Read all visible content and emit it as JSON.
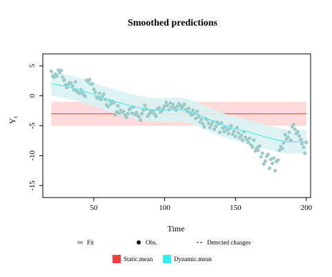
{
  "chart_data": {
    "type": "line",
    "title": "Smoothed predictions",
    "xlabel": "Time",
    "ylabel": "Y",
    "ylabel_sub": "t",
    "xlim": [
      14,
      203
    ],
    "ylim": [
      -17,
      7
    ],
    "xticks": [
      50,
      100,
      150,
      200
    ],
    "yticks": [
      5,
      0,
      -5,
      -10,
      -15
    ],
    "grid": false,
    "legend_rows": [
      [
        {
          "label": "Fit",
          "symbol": "fit"
        },
        {
          "label": "Obs.",
          "symbol": "dot"
        },
        {
          "label": "Detected changes",
          "symbol": "dash"
        }
      ],
      [
        {
          "label": "Static.mean",
          "symbol": "box",
          "color": "#ff3b3b"
        },
        {
          "label": "Dynamic.mean",
          "symbol": "box",
          "color": "#33f0f0"
        }
      ]
    ],
    "colors": {
      "static_line": "#ff5a5a",
      "static_band": "#ffdada",
      "dynamic_line": "#5fe8e8",
      "dynamic_band": "#d9f2f2",
      "obs": "#9ec9c9"
    },
    "static_mean": {
      "x_range": [
        20,
        200
      ],
      "mean": -3.0,
      "lower": -5.0,
      "upper": -1.0
    },
    "dynamic_mean": {
      "x": [
        20,
        30,
        40,
        50,
        60,
        70,
        80,
        90,
        100,
        110,
        120,
        130,
        140,
        150,
        160,
        170,
        180,
        190,
        200
      ],
      "mean": [
        2.0,
        1.6,
        1.0,
        0.2,
        -0.6,
        -1.3,
        -1.9,
        -2.3,
        -2.4,
        -2.3,
        -2.8,
        -3.8,
        -4.8,
        -5.5,
        -6.1,
        -6.8,
        -7.4,
        -7.7,
        -7.6
      ],
      "lower": [
        0.0,
        -0.4,
        -1.0,
        -1.8,
        -2.6,
        -3.3,
        -3.9,
        -4.3,
        -4.4,
        -4.3,
        -4.8,
        -5.8,
        -6.8,
        -7.5,
        -8.1,
        -8.8,
        -9.4,
        -9.7,
        -9.6
      ],
      "upper": [
        4.0,
        3.6,
        3.0,
        2.2,
        1.4,
        0.7,
        0.1,
        -0.3,
        -0.4,
        -0.3,
        -0.8,
        -1.8,
        -2.8,
        -3.5,
        -4.1,
        -4.8,
        -5.4,
        -5.7,
        -5.6
      ]
    },
    "observations": {
      "x": [
        20,
        21,
        22,
        23,
        24,
        25,
        26,
        27,
        28,
        29,
        30,
        31,
        32,
        33,
        34,
        35,
        36,
        37,
        38,
        39,
        40,
        41,
        42,
        43,
        44,
        45,
        46,
        47,
        48,
        49,
        50,
        51,
        52,
        53,
        54,
        55,
        56,
        57,
        58,
        59,
        60,
        61,
        62,
        63,
        64,
        65,
        66,
        67,
        68,
        69,
        70,
        71,
        72,
        73,
        74,
        75,
        76,
        77,
        78,
        79,
        80,
        81,
        82,
        83,
        84,
        85,
        86,
        87,
        88,
        89,
        90,
        91,
        92,
        93,
        94,
        95,
        96,
        97,
        98,
        99,
        100,
        101,
        102,
        103,
        104,
        105,
        106,
        107,
        108,
        109,
        110,
        111,
        112,
        113,
        114,
        115,
        116,
        117,
        118,
        119,
        120,
        121,
        122,
        123,
        124,
        125,
        126,
        127,
        128,
        129,
        130,
        131,
        132,
        133,
        134,
        135,
        136,
        137,
        138,
        139,
        140,
        141,
        142,
        143,
        144,
        145,
        146,
        147,
        148,
        149,
        150,
        151,
        152,
        153,
        154,
        155,
        156,
        157,
        158,
        159,
        160,
        161,
        162,
        163,
        164,
        165,
        166,
        167,
        168,
        169,
        170,
        171,
        172,
        173,
        174,
        175,
        176,
        177,
        178,
        179,
        180,
        181,
        182,
        183,
        184,
        185,
        186,
        187,
        188,
        189,
        190,
        191,
        192,
        193,
        194,
        195,
        196,
        197,
        198,
        199,
        200
      ],
      "y": [
        4.1,
        3.3,
        3.1,
        3.6,
        3.3,
        4.3,
        3.9,
        4.2,
        3.1,
        2.6,
        1.8,
        1.4,
        1.9,
        2.2,
        2.1,
        1.6,
        1.0,
        2.3,
        0.8,
        0.5,
        0.4,
        1.0,
        0.5,
        0.1,
        -0.1,
        2.6,
        2.3,
        2.7,
        1.9,
        2.0,
        1.1,
        0.6,
        -0.3,
        -0.4,
        0.4,
        -0.6,
        -0.1,
        0.3,
        -0.6,
        -1.5,
        -1.8,
        -0.8,
        -1.4,
        -0.9,
        -1.2,
        -3.2,
        -2.7,
        -1.7,
        -2.9,
        -2.4,
        -2.7,
        -2.6,
        -3.2,
        -3.6,
        -3.0,
        -2.3,
        -2.1,
        -2.9,
        -1.9,
        -3.1,
        -2.8,
        -3.3,
        -3.5,
        -4.1,
        -3.0,
        -2.4,
        -1.6,
        -2.2,
        -3.4,
        -3.1,
        -2.6,
        -2.8,
        -2.5,
        -3.1,
        -3.4,
        -2.2,
        -2.0,
        -2.7,
        -2.5,
        -2.1,
        -1.7,
        -1.1,
        -1.6,
        -2.3,
        -1.2,
        -1.9,
        -1.4,
        -2.0,
        -2.4,
        -1.8,
        -1.3,
        -1.6,
        -2.0,
        -1.7,
        -1.4,
        -2.3,
        -2.6,
        -2.1,
        -2.9,
        -3.2,
        -2.4,
        -3.0,
        -3.8,
        -2.6,
        -3.5,
        -4.4,
        -3.9,
        -4.7,
        -5.2,
        -3.8,
        -4.0,
        -4.6,
        -5.3,
        -4.8,
        -4.3,
        -5.6,
        -5.1,
        -4.4,
        -4.7,
        -6.1,
        -4.5,
        -5.4,
        -6.0,
        -5.2,
        -5.7,
        -6.3,
        -5.5,
        -5.0,
        -6.4,
        -5.9,
        -6.8,
        -5.3,
        -6.2,
        -7.0,
        -6.6,
        -7.4,
        -6.0,
        -6.9,
        -7.3,
        -7.8,
        -7.1,
        -8.2,
        -8.6,
        -7.4,
        -9.2,
        -8.7,
        -9.1,
        -8.4,
        -10.2,
        -9.6,
        -11.4,
        -10.9,
        -10.1,
        -9.8,
        -12.1,
        -10.6,
        -11.3,
        -10.4,
        -12.5,
        -11.0,
        -10.7,
        -9.1,
        -8.5,
        -8.8,
        -7.9,
        -6.5,
        -7.2,
        -6.9,
        -6.1,
        -7.4,
        -5.2,
        -4.8,
        -5.6,
        -6.3,
        -6.0,
        -6.7,
        -7.3,
        -8.0,
        -8.6,
        -9.6,
        -7.8
      ]
    }
  }
}
